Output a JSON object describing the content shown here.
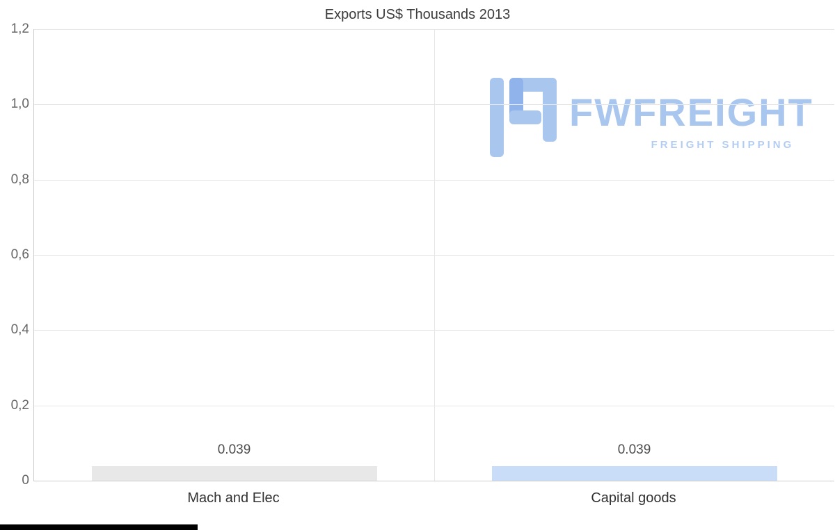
{
  "chart_data": {
    "type": "bar",
    "title": "Exports US$ Thousands 2013",
    "categories": [
      "Mach and Elec",
      "Capital goods"
    ],
    "values": [
      0.039,
      0.039
    ],
    "data_labels": [
      "0.039",
      "0.039"
    ],
    "ylim": [
      0,
      1.2
    ],
    "yticks": [
      {
        "value": 1.2,
        "label": "1,2"
      },
      {
        "value": 1.0,
        "label": "1,0"
      },
      {
        "value": 0.8,
        "label": "0,8"
      },
      {
        "value": 0.6,
        "label": "0,6"
      },
      {
        "value": 0.4,
        "label": "0,4"
      },
      {
        "value": 0.2,
        "label": "0,2"
      },
      {
        "value": 0.0,
        "label": "0"
      }
    ],
    "grid": true,
    "legend": "none",
    "bar_colors": [
      "#e8e8e8",
      "#c9ddf8"
    ]
  },
  "watermark": {
    "title": "FWFREIGHT",
    "subtitle": "FREIGHT SHIPPING",
    "color": "#a9c6ef",
    "accent_color": "#8fb3ea"
  },
  "colors": {
    "title_text": "#3c3c3c",
    "tick_text": "#666666",
    "grid_line": "#e6e6e6",
    "axis_line": "#cccccc",
    "label_text": "#333333"
  }
}
